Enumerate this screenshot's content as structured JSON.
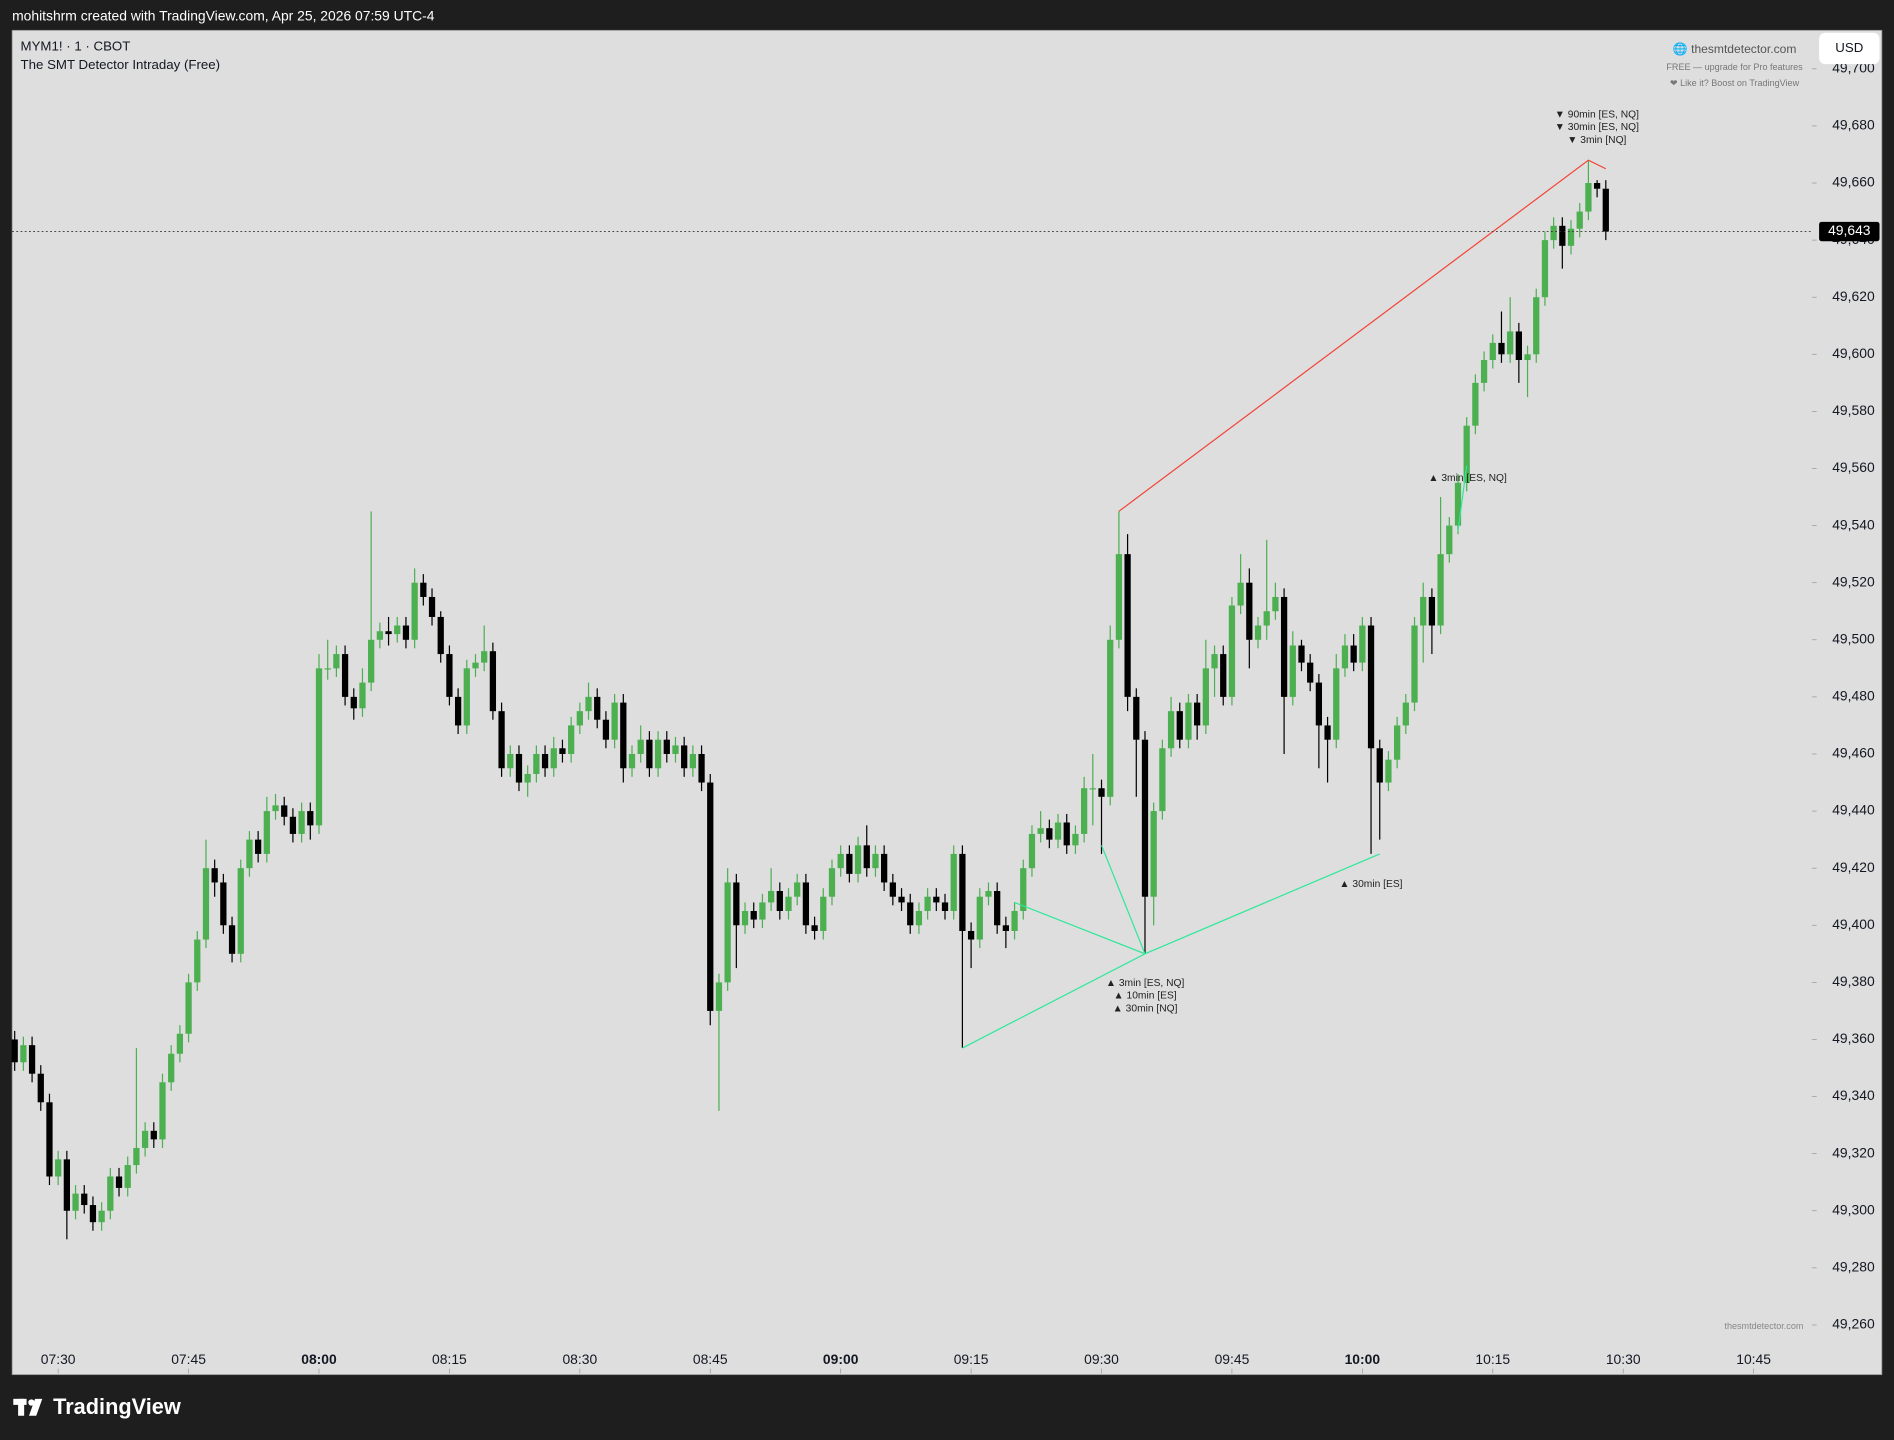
{
  "header": {
    "caption": "mohitshrm created with TradingView.com, Apr 25, 2026 07:59 UTC-4"
  },
  "watermark": {
    "site": "🌐 thesmtdetector.com",
    "line1": "FREE — upgrade for Pro features",
    "line2": "❤ Like it? Boost on TradingView",
    "footer_site": "thesmtdetector.com"
  },
  "footer": {
    "brand": "TradingView"
  },
  "chart_data": {
    "type": "candlestick",
    "symbol": "MYM1! · 1 · CBOT",
    "indicator": "The SMT Detector Intraday (Free)",
    "currency": "USD",
    "up_color": "#4caf50",
    "down_color": "#000000",
    "x": [
      445,
      446,
      447,
      448,
      449,
      450,
      451,
      452,
      453,
      454,
      455,
      456,
      457,
      458,
      459,
      460,
      461,
      462,
      463,
      464,
      465,
      466,
      467,
      468,
      469,
      470,
      471,
      472,
      473,
      474,
      475,
      476,
      477,
      478,
      479,
      480,
      481,
      482,
      483,
      484,
      485,
      486,
      487,
      488,
      489,
      490,
      491,
      492,
      493,
      494,
      495,
      496,
      497,
      498,
      499,
      500,
      501,
      502,
      503,
      504,
      505,
      506,
      507,
      508,
      509,
      510,
      511,
      512,
      513,
      514,
      515,
      516,
      517,
      518,
      519,
      520,
      521,
      522,
      523,
      524,
      525,
      526,
      527,
      528,
      529,
      530,
      531,
      532,
      533,
      534,
      535,
      536,
      537,
      538,
      539,
      540,
      541,
      542,
      543,
      544,
      545,
      546,
      547,
      548,
      549,
      550,
      551,
      552,
      553,
      554,
      555,
      556,
      557,
      558,
      559,
      560,
      561,
      562,
      563,
      564,
      565,
      566,
      567,
      568,
      569,
      570,
      571,
      572,
      573,
      574,
      575,
      576,
      577,
      578,
      579,
      580,
      581,
      582,
      583,
      584,
      585,
      586,
      587,
      588,
      589,
      590,
      591,
      592,
      593,
      594,
      595,
      596,
      597,
      598,
      599,
      600,
      601,
      602,
      603,
      604,
      605,
      606,
      607,
      608,
      609,
      610,
      611,
      612,
      613,
      614,
      615,
      616,
      617,
      618,
      619,
      620,
      621,
      622,
      623,
      624,
      625,
      626,
      627,
      628
    ],
    "open": [
      49360,
      49352,
      49358,
      49348,
      49338,
      49312,
      49318,
      49300,
      49306,
      49302,
      49296,
      49300,
      49312,
      49308,
      49316,
      49322,
      49328,
      49325,
      49345,
      49355,
      49362,
      49380,
      49395,
      49420,
      49415,
      49400,
      49390,
      49420,
      49430,
      49425,
      49440,
      49442,
      49438,
      49432,
      49440,
      49435,
      49490,
      49490,
      49495,
      49480,
      49476,
      49485,
      49500,
      49503,
      49502,
      49505,
      49500,
      49520,
      49515,
      49508,
      49495,
      49480,
      49470,
      49490,
      49492,
      49496,
      49475,
      49455,
      49460,
      49450,
      49453,
      49460,
      49455,
      49462,
      49460,
      49470,
      49475,
      49480,
      49472,
      49465,
      49478,
      49455,
      49460,
      49465,
      49455,
      49465,
      49460,
      49463,
      49455,
      49460,
      49450,
      49370,
      49380,
      49415,
      49400,
      49405,
      49402,
      49408,
      49412,
      49405,
      49410,
      49415,
      49400,
      49398,
      49410,
      49420,
      49425,
      49418,
      49428,
      49420,
      49425,
      49415,
      49410,
      49408,
      49400,
      49405,
      49410,
      49408,
      49405,
      49425,
      49398,
      49395,
      49410,
      49412,
      49400,
      49398,
      49405,
      49420,
      49432,
      49434,
      49430,
      49436,
      49428,
      49432,
      49448,
      49448,
      49445,
      49500,
      49530,
      49480,
      49465,
      49410,
      49440,
      49462,
      49475,
      49465,
      49478,
      49470,
      49490,
      49495,
      49480,
      49512,
      49520,
      49500,
      49505,
      49510,
      49515,
      49480,
      49498,
      49492,
      49485,
      49470,
      49465,
      49490,
      49498,
      49492,
      49505,
      49462,
      49450,
      49458,
      49470,
      49478,
      49505,
      49515,
      49505,
      49530,
      49540,
      49555,
      49575,
      49590,
      49598,
      49604,
      49600,
      49608,
      49598,
      49600,
      49620,
      49640,
      49645,
      49638,
      49644,
      49650,
      49660,
      49658
    ],
    "high": [
      49363,
      49361,
      49361,
      49351,
      49341,
      49321,
      49321,
      49309,
      49309,
      49305,
      49303,
      49315,
      49315,
      49319,
      49357,
      49331,
      49331,
      49348,
      49358,
      49365,
      49383,
      49398,
      49430,
      49423,
      49418,
      49403,
      49423,
      49433,
      49433,
      49445,
      49446,
      49445,
      49441,
      49443,
      49443,
      49495,
      49500,
      49498,
      49498,
      49483,
      49490,
      49545,
      49506,
      49508,
      49508,
      49508,
      49525,
      49523,
      49518,
      49510,
      49498,
      49483,
      49493,
      49495,
      49505,
      49499,
      49478,
      49463,
      49463,
      49456,
      49463,
      49463,
      49466,
      49465,
      49473,
      49478,
      49485,
      49483,
      49475,
      49481,
      49481,
      49463,
      49470,
      49468,
      49468,
      49468,
      49466,
      49466,
      49463,
      49463,
      49453,
      49383,
      49420,
      49418,
      49408,
      49408,
      49411,
      49420,
      49415,
      49413,
      49418,
      49418,
      49403,
      49413,
      49423,
      49428,
      49428,
      49431,
      49435,
      49428,
      49428,
      49418,
      49413,
      49411,
      49408,
      49413,
      49413,
      49411,
      49428,
      49428,
      49401,
      49413,
      49415,
      49415,
      49403,
      49408,
      49423,
      49435,
      49440,
      49437,
      49439,
      49439,
      49435,
      49452,
      49460,
      49451,
      49505,
      49545,
      49537,
      49483,
      49468,
      49443,
      49465,
      49480,
      49478,
      49481,
      49481,
      49500,
      49498,
      49498,
      49515,
      49530,
      49525,
      49508,
      49535,
      49520,
      49518,
      49503,
      49500,
      49495,
      49488,
      49473,
      49495,
      49502,
      49502,
      49508,
      49508,
      49465,
      49461,
      49473,
      49481,
      49508,
      49520,
      49518,
      49550,
      49543,
      49558,
      49578,
      49593,
      49601,
      49607,
      49615,
      49620,
      49611,
      49603,
      49623,
      49643,
      49648,
      49648,
      49647,
      49653,
      49668,
      49661,
      49661
    ],
    "low": [
      49349,
      49349,
      49345,
      49335,
      49309,
      49309,
      49290,
      49297,
      49299,
      49293,
      49293,
      49297,
      49305,
      49305,
      49313,
      49319,
      49322,
      49322,
      49342,
      49352,
      49359,
      49377,
      49392,
      49410,
      49397,
      49387,
      49387,
      49417,
      49422,
      49422,
      49437,
      49435,
      49429,
      49429,
      49430,
      49432,
      49486,
      49487,
      49477,
      49472,
      49473,
      49482,
      49497,
      49498,
      49499,
      49497,
      49497,
      49512,
      49505,
      49492,
      49477,
      49467,
      49467,
      49487,
      49489,
      49472,
      49452,
      49452,
      49447,
      49445,
      49450,
      49452,
      49452,
      49457,
      49457,
      49467,
      49472,
      49469,
      49462,
      49462,
      49450,
      49452,
      49457,
      49452,
      49452,
      49457,
      49457,
      49452,
      49452,
      49447,
      49365,
      49335,
      49377,
      49385,
      49397,
      49399,
      49399,
      49405,
      49402,
      49402,
      49407,
      49397,
      49395,
      49395,
      49407,
      49417,
      49415,
      49415,
      49417,
      49417,
      49412,
      49407,
      49405,
      49397,
      49397,
      49402,
      49405,
      49402,
      49402,
      49357,
      49385,
      49392,
      49407,
      49397,
      49392,
      49395,
      49402,
      49417,
      49429,
      49427,
      49427,
      49425,
      49425,
      49429,
      49435,
      49425,
      49442,
      49497,
      49475,
      49445,
      49390,
      49400,
      49437,
      49459,
      49462,
      49462,
      49465,
      49467,
      49480,
      49477,
      49477,
      49509,
      49490,
      49497,
      49500,
      49507,
      49460,
      49477,
      49489,
      49482,
      49455,
      49450,
      49462,
      49487,
      49489,
      49489,
      49425,
      49430,
      49447,
      49455,
      49467,
      49475,
      49492,
      49495,
      49502,
      49527,
      49537,
      49552,
      49572,
      49587,
      49595,
      49597,
      49597,
      49590,
      49585,
      49597,
      49617,
      49637,
      49630,
      49635,
      49641,
      49647,
      49655,
      49640
    ],
    "close": [
      49352,
      49358,
      49348,
      49338,
      49312,
      49318,
      49300,
      49306,
      49302,
      49296,
      49300,
      49312,
      49308,
      49316,
      49322,
      49328,
      49325,
      49345,
      49355,
      49362,
      49380,
      49395,
      49420,
      49415,
      49400,
      49390,
      49420,
      49430,
      49425,
      49440,
      49442,
      49438,
      49432,
      49440,
      49435,
      49490,
      49490,
      49495,
      49480,
      49476,
      49485,
      49500,
      49503,
      49502,
      49505,
      49500,
      49520,
      49515,
      49508,
      49495,
      49480,
      49470,
      49490,
      49492,
      49496,
      49475,
      49455,
      49460,
      49450,
      49453,
      49460,
      49455,
      49462,
      49460,
      49470,
      49475,
      49480,
      49472,
      49465,
      49478,
      49455,
      49460,
      49465,
      49455,
      49465,
      49460,
      49463,
      49455,
      49460,
      49450,
      49370,
      49380,
      49415,
      49400,
      49405,
      49402,
      49408,
      49412,
      49405,
      49410,
      49415,
      49400,
      49398,
      49410,
      49420,
      49425,
      49418,
      49428,
      49420,
      49425,
      49415,
      49410,
      49408,
      49400,
      49405,
      49410,
      49408,
      49405,
      49425,
      49398,
      49395,
      49410,
      49412,
      49400,
      49398,
      49405,
      49420,
      49432,
      49434,
      49430,
      49436,
      49428,
      49432,
      49448,
      49448,
      49445,
      49500,
      49530,
      49480,
      49465,
      49410,
      49440,
      49462,
      49475,
      49465,
      49478,
      49470,
      49490,
      49495,
      49480,
      49512,
      49520,
      49500,
      49505,
      49510,
      49515,
      49480,
      49498,
      49492,
      49485,
      49470,
      49465,
      49490,
      49498,
      49492,
      49505,
      49462,
      49450,
      49458,
      49470,
      49478,
      49505,
      49515,
      49505,
      49530,
      49540,
      49555,
      49575,
      49590,
      49598,
      49604,
      49600,
      49608,
      49598,
      49600,
      49620,
      49640,
      49645,
      49638,
      49644,
      49650,
      49660,
      49658,
      49643
    ],
    "xlim": [
      444.7,
      651.7
    ],
    "ylim": [
      49243,
      49713.5
    ],
    "xticks": [
      {
        "value": 450,
        "label": "07:30"
      },
      {
        "value": 465,
        "label": "07:45"
      },
      {
        "value": 480,
        "label": "08:00"
      },
      {
        "value": 495,
        "label": "08:15"
      },
      {
        "value": 510,
        "label": "08:30"
      },
      {
        "value": 525,
        "label": "08:45"
      },
      {
        "value": 540,
        "label": "09:00"
      },
      {
        "value": 555,
        "label": "09:15"
      },
      {
        "value": 570,
        "label": "09:30"
      },
      {
        "value": 585,
        "label": "09:45"
      },
      {
        "value": 600,
        "label": "10:00"
      },
      {
        "value": 615,
        "label": "10:15"
      },
      {
        "value": 630,
        "label": "10:30"
      },
      {
        "value": 645,
        "label": "10:45"
      }
    ],
    "yticks": [
      {
        "value": 49260,
        "label": "49,260"
      },
      {
        "value": 49280,
        "label": "49,280"
      },
      {
        "value": 49300,
        "label": "49,300"
      },
      {
        "value": 49320,
        "label": "49,320"
      },
      {
        "value": 49340,
        "label": "49,340"
      },
      {
        "value": 49360,
        "label": "49,360"
      },
      {
        "value": 49380,
        "label": "49,380"
      },
      {
        "value": 49400,
        "label": "49,400"
      },
      {
        "value": 49420,
        "label": "49,420"
      },
      {
        "value": 49440,
        "label": "49,440"
      },
      {
        "value": 49460,
        "label": "49,460"
      },
      {
        "value": 49480,
        "label": "49,480"
      },
      {
        "value": 49500,
        "label": "49,500"
      },
      {
        "value": 49520,
        "label": "49,520"
      },
      {
        "value": 49540,
        "label": "49,540"
      },
      {
        "value": 49560,
        "label": "49,560"
      },
      {
        "value": 49580,
        "label": "49,580"
      },
      {
        "value": 49600,
        "label": "49,600"
      },
      {
        "value": 49620,
        "label": "49,620"
      },
      {
        "value": 49640,
        "label": "49,640"
      },
      {
        "value": 49660,
        "label": "49,660"
      },
      {
        "value": 49680,
        "label": "49,680"
      },
      {
        "value": 49700,
        "label": "49,700"
      }
    ],
    "last_price": {
      "value": 49643,
      "label": "49,643"
    },
    "annotations": [
      {
        "color": "#f44336",
        "x": [
          572,
          626,
          628
        ],
        "y": [
          49545,
          49668,
          49665
        ]
      },
      {
        "color": "#2ee89a",
        "x": [
          554,
          575,
          602
        ],
        "y": [
          49357,
          49390,
          49425
        ]
      },
      {
        "color": "#2ee89a",
        "x": [
          560,
          575
        ],
        "y": [
          49408,
          49390
        ]
      },
      {
        "color": "#2ee89a",
        "x": [
          570,
          575
        ],
        "y": [
          49428,
          49390
        ]
      },
      {
        "color": "#2ee89a",
        "x": [
          611,
          612
        ],
        "y": [
          49538,
          49561
        ]
      }
    ],
    "annotation_labels": [
      [
        "▼ 90min [ES, NQ]",
        "▼ 30min [ES, NQ]",
        "▼ 3min [NQ]"
      ],
      [
        "▲ 3min [ES, NQ]"
      ],
      [
        "▲ 30min [ES]"
      ],
      [
        "▲ 3min [ES, NQ]",
        "▲ 10min [ES]",
        "▲ 30min [NQ]"
      ]
    ]
  }
}
